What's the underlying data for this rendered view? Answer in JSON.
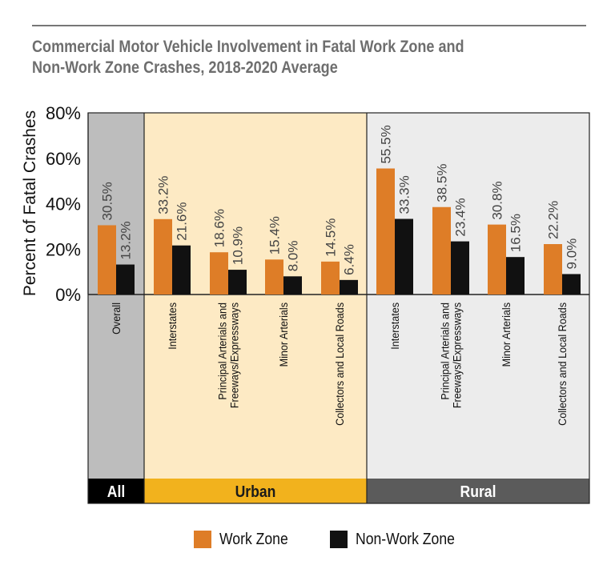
{
  "title_line1": "Commercial Motor Vehicle Involvement in Fatal Work Zone and",
  "title_line2": "Non-Work Zone Crashes, 2018-2020 Average",
  "colors": {
    "work_zone": "#de7d27",
    "non_work_zone": "#111111",
    "all_panel": "#bdbdbd",
    "urban_panel": "#fdeac4",
    "rural_panel": "#ececec",
    "all_band": "#000000",
    "urban_band": "#f2b21d",
    "rural_band": "#5b5b5b"
  },
  "legend": {
    "work_zone": "Work Zone",
    "non_work_zone": "Non-Work Zone"
  },
  "chart_data": {
    "type": "bar",
    "ylabel": "Percent of Fatal Crashes",
    "ylim": [
      0,
      80
    ],
    "yticks": [
      "0%",
      "20%",
      "40%",
      "60%",
      "80%"
    ],
    "grid": false,
    "legend_position": "bottom",
    "series": [
      {
        "name": "Work Zone",
        "values": [
          30.5,
          33.2,
          18.6,
          15.4,
          14.5,
          55.5,
          38.5,
          30.8,
          22.2
        ],
        "labels": [
          "30.5%",
          "33.2%",
          "18.6%",
          "15.4%",
          "14.5%",
          "55.5%",
          "38.5%",
          "30.8%",
          "22.2%"
        ]
      },
      {
        "name": "Non-Work Zone",
        "values": [
          13.2,
          21.6,
          10.9,
          8.0,
          6.4,
          33.3,
          23.4,
          16.5,
          9.0
        ],
        "labels": [
          "13.2%",
          "21.6%",
          "10.9%",
          "8.0%",
          "6.4%",
          "33.3%",
          "23.4%",
          "16.5%",
          "9.0%"
        ]
      }
    ],
    "groups": [
      {
        "name": "All",
        "categories": [
          {
            "lines": [
              "Overall"
            ]
          }
        ]
      },
      {
        "name": "Urban",
        "categories": [
          {
            "lines": [
              "Interstates"
            ]
          },
          {
            "lines": [
              "Principal Arterials and",
              "Freeways/Expressways"
            ]
          },
          {
            "lines": [
              "Minor Arterials"
            ]
          },
          {
            "lines": [
              "Collectors and Local Roads"
            ]
          }
        ]
      },
      {
        "name": "Rural",
        "categories": [
          {
            "lines": [
              "Interstates"
            ]
          },
          {
            "lines": [
              "Principal Arterials and",
              "Freeways/Expressways"
            ]
          },
          {
            "lines": [
              "Minor Arterials"
            ]
          },
          {
            "lines": [
              "Collectors and Local Roads"
            ]
          }
        ]
      }
    ]
  }
}
